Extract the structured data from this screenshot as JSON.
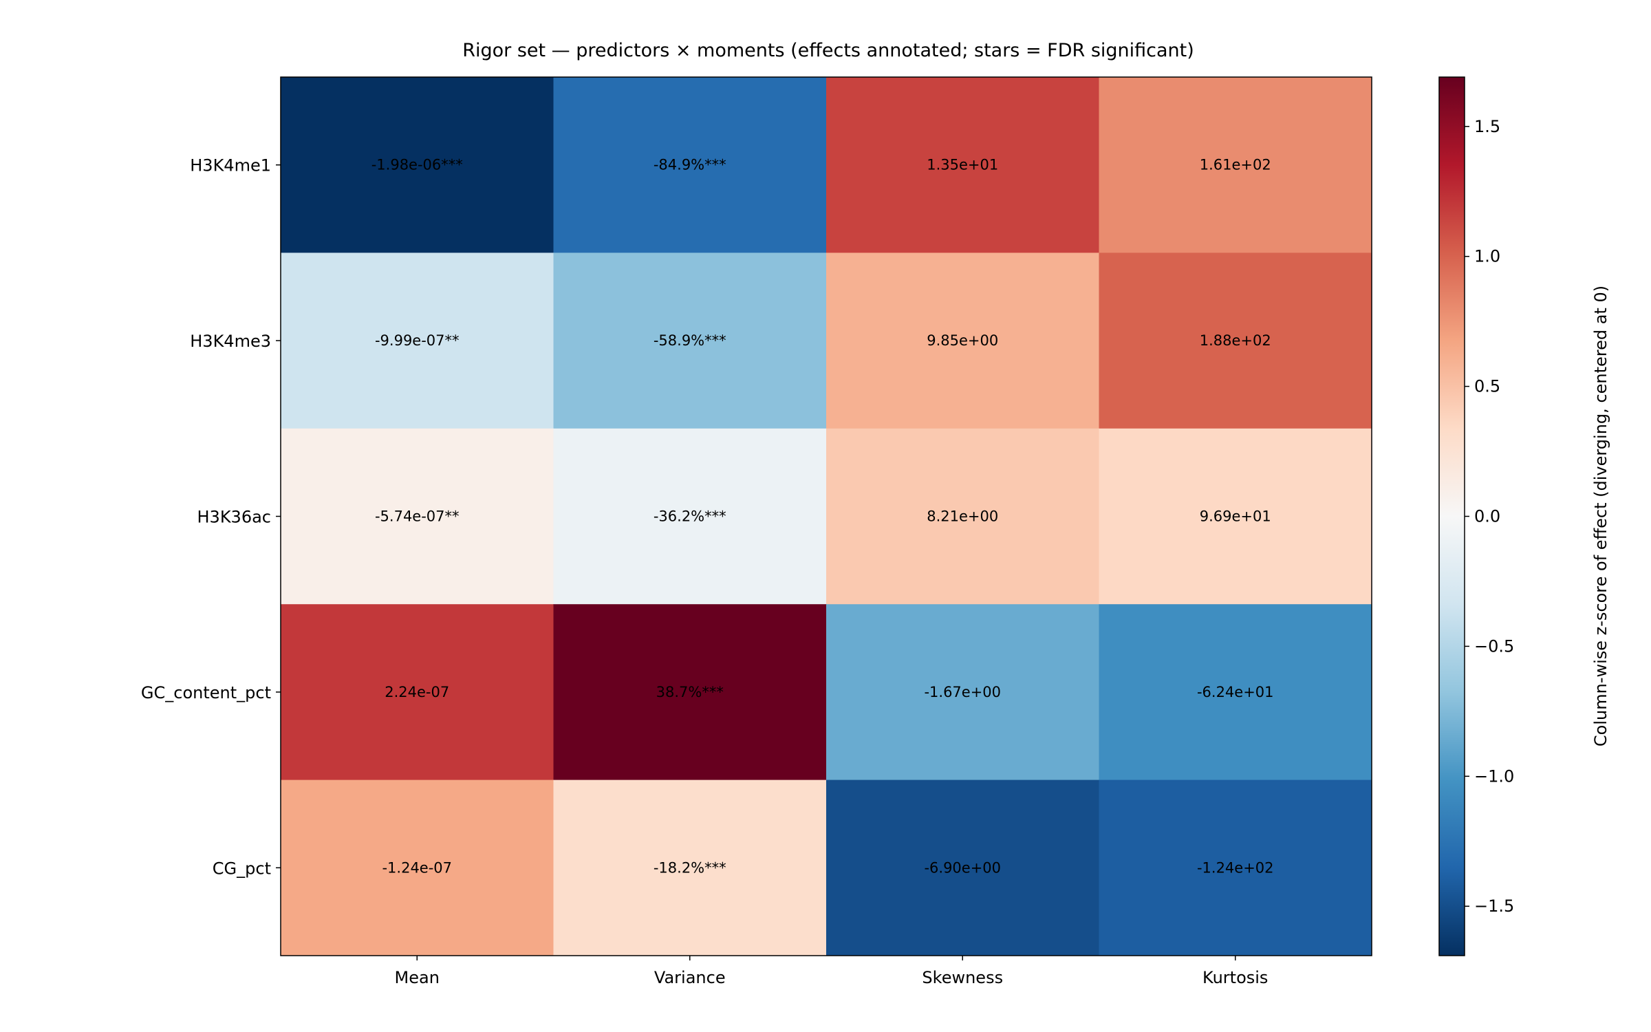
{
  "chart_data": {
    "type": "heatmap",
    "title": "Rigor set — predictors × moments (effects annotated; stars = FDR significant)",
    "rows": [
      "H3K4me1",
      "H3K4me3",
      "H3K36ac",
      "GC_content_pct",
      "CG_pct"
    ],
    "columns": [
      "Mean",
      "Variance",
      "Skewness",
      "Kurtosis"
    ],
    "annotations": [
      [
        "-1.98e-06***",
        "-84.9%***",
        "1.35e+01",
        "1.61e+02"
      ],
      [
        "-9.99e-07**",
        "-58.9%***",
        "9.85e+00",
        "1.88e+02"
      ],
      [
        "-5.74e-07**",
        "-36.2%***",
        "8.21e+00",
        "9.69e+01"
      ],
      [
        "2.24e-07",
        "38.7%***",
        "-1.67e+00",
        "-6.24e+01"
      ],
      [
        "-1.24e-07",
        "-18.2%***",
        "-6.90e+00",
        "-1.24e+02"
      ]
    ],
    "z_values": [
      [
        -1.69,
        -1.3,
        1.15,
        0.8
      ],
      [
        -0.35,
        -0.7,
        0.6,
        1.0
      ],
      [
        0.1,
        -0.1,
        0.45,
        0.35
      ],
      [
        1.2,
        1.69,
        -0.85,
        -1.05
      ],
      [
        0.65,
        0.3,
        -1.5,
        -1.4
      ]
    ],
    "colormap": "RdBu_r",
    "vmin": -1.69,
    "vmax": 1.69,
    "colorbar": {
      "label": "Column-wise z-score of effect (diverging, centered at 0)",
      "ticks": [
        -1.5,
        -1.0,
        -0.5,
        0.0,
        0.5,
        1.0,
        1.5
      ],
      "tick_labels": [
        "−1.5",
        "−1.0",
        "−0.5",
        "0.0",
        "0.5",
        "1.0",
        "1.5"
      ]
    }
  }
}
